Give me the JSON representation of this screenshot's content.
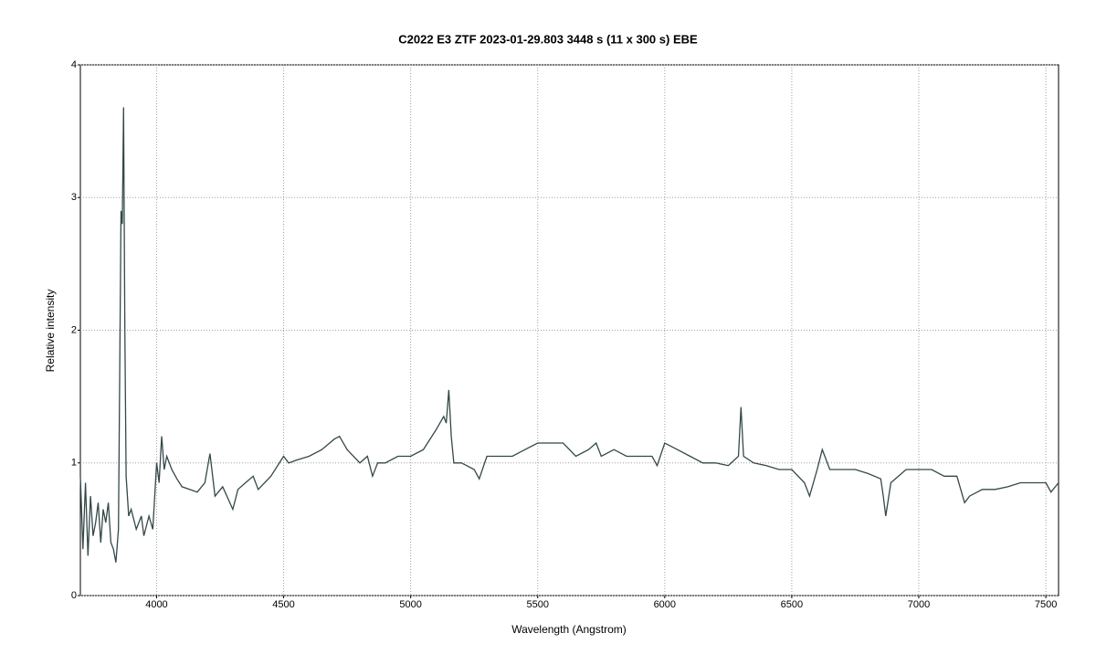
{
  "chart_data": {
    "type": "line",
    "title": "C2022 E3 ZTF   2023-01-29.803   3448 s (11 x 300 s)   EBE",
    "x_label": "Wavelength (Angstrom)",
    "y_label": "Relative intensity",
    "xlim": [
      3700,
      7550
    ],
    "ylim": [
      0,
      4
    ],
    "xticks": [
      4000,
      4500,
      5000,
      5500,
      6000,
      6500,
      7000,
      7500
    ],
    "yticks": [
      0,
      1,
      2,
      3,
      4
    ],
    "grid": true,
    "x": [
      3700,
      3710,
      3720,
      3730,
      3740,
      3750,
      3760,
      3770,
      3780,
      3790,
      3800,
      3810,
      3820,
      3830,
      3840,
      3850,
      3860,
      3865,
      3870,
      3875,
      3880,
      3890,
      3900,
      3920,
      3940,
      3950,
      3970,
      3985,
      4000,
      4010,
      4020,
      4030,
      4040,
      4060,
      4080,
      4100,
      4130,
      4160,
      4190,
      4210,
      4230,
      4260,
      4300,
      4320,
      4350,
      4380,
      4400,
      4450,
      4500,
      4520,
      4550,
      4600,
      4650,
      4700,
      4720,
      4750,
      4800,
      4830,
      4850,
      4870,
      4900,
      4950,
      5000,
      5050,
      5100,
      5130,
      5140,
      5150,
      5160,
      5170,
      5200,
      5250,
      5270,
      5300,
      5350,
      5400,
      5450,
      5500,
      5550,
      5600,
      5650,
      5700,
      5730,
      5750,
      5800,
      5850,
      5900,
      5950,
      5970,
      6000,
      6050,
      6100,
      6150,
      6200,
      6250,
      6290,
      6300,
      6310,
      6350,
      6400,
      6450,
      6500,
      6550,
      6570,
      6600,
      6620,
      6650,
      6700,
      6750,
      6800,
      6850,
      6860,
      6870,
      6890,
      6950,
      7000,
      7050,
      7100,
      7150,
      7180,
      7200,
      7250,
      7300,
      7350,
      7400,
      7450,
      7500,
      7520,
      7550
    ],
    "color": "#354848",
    "values": [
      0.9,
      0.35,
      0.85,
      0.3,
      0.75,
      0.45,
      0.55,
      0.7,
      0.4,
      0.65,
      0.55,
      0.7,
      0.4,
      0.35,
      0.25,
      0.5,
      2.9,
      2.8,
      3.68,
      2.0,
      0.9,
      0.6,
      0.65,
      0.5,
      0.6,
      0.45,
      0.6,
      0.5,
      1.0,
      0.85,
      1.2,
      0.95,
      1.05,
      0.95,
      0.88,
      0.82,
      0.8,
      0.78,
      0.85,
      1.07,
      0.75,
      0.82,
      0.65,
      0.8,
      0.85,
      0.9,
      0.8,
      0.9,
      1.05,
      1.0,
      1.02,
      1.05,
      1.1,
      1.18,
      1.2,
      1.1,
      1.0,
      1.05,
      0.9,
      1.0,
      1.0,
      1.05,
      1.05,
      1.1,
      1.25,
      1.35,
      1.3,
      1.55,
      1.2,
      1.0,
      1.0,
      0.95,
      0.88,
      1.05,
      1.05,
      1.05,
      1.1,
      1.15,
      1.15,
      1.15,
      1.05,
      1.1,
      1.15,
      1.05,
      1.1,
      1.05,
      1.05,
      1.05,
      0.98,
      1.15,
      1.1,
      1.05,
      1.0,
      1.0,
      0.98,
      1.05,
      1.42,
      1.05,
      1.0,
      0.98,
      0.95,
      0.95,
      0.85,
      0.75,
      0.95,
      1.1,
      0.95,
      0.95,
      0.95,
      0.92,
      0.88,
      0.75,
      0.6,
      0.85,
      0.95,
      0.95,
      0.95,
      0.9,
      0.9,
      0.7,
      0.75,
      0.8,
      0.8,
      0.82,
      0.85,
      0.85,
      0.85,
      0.78,
      0.85
    ]
  }
}
